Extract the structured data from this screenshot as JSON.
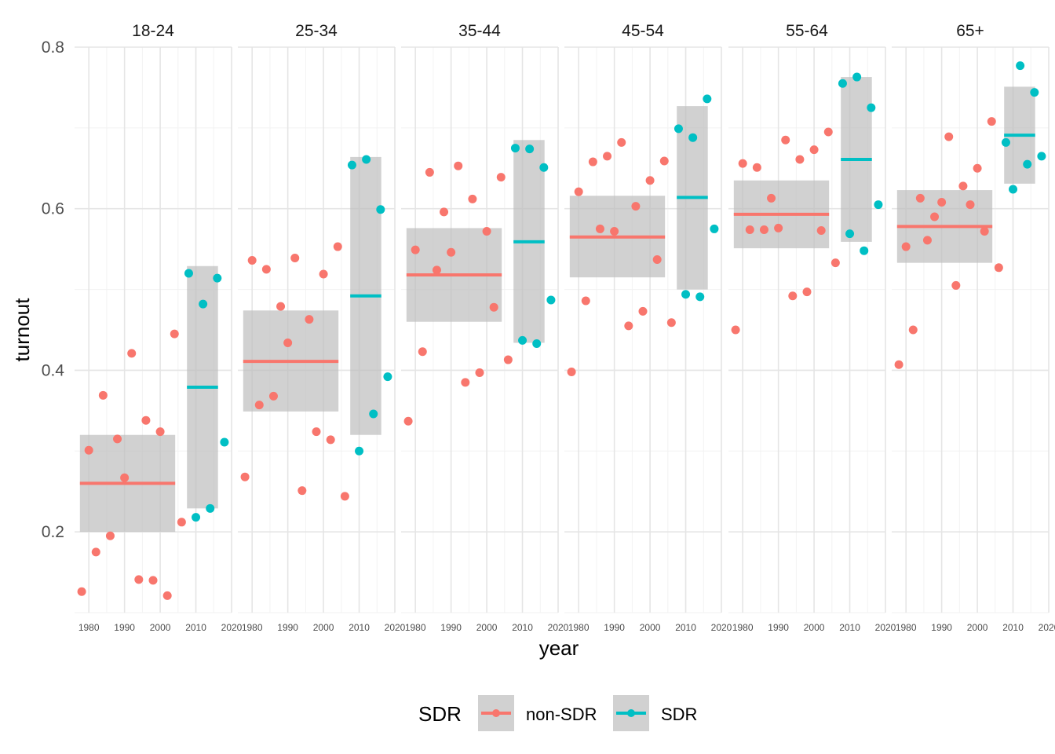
{
  "chart_data": {
    "type": "scatter",
    "xlabel": "year",
    "ylabel": "turnout",
    "xlim": [
      1976,
      2020
    ],
    "ylim": [
      0.1,
      0.8
    ],
    "x_ticks": [
      "1980",
      "1990",
      "2000",
      "2010",
      "2020"
    ],
    "y_ticks": [
      "0.2",
      "0.4",
      "0.6",
      "0.8"
    ],
    "legend": {
      "title": "SDR",
      "position": "bottom",
      "entries": [
        {
          "label": "non-SDR",
          "color": "#F8766D"
        },
        {
          "label": "SDR",
          "color": "#00BFC4"
        }
      ]
    },
    "colors": {
      "non-SDR": "#F8766D",
      "SDR": "#00BFC4",
      "band": "#BEBEBE",
      "grid": "#EBEBEB"
    },
    "panels": [
      {
        "label": "18-24",
        "nonsdr": {
          "x": [
            1978,
            1980,
            1982,
            1984,
            1986,
            1988,
            1990,
            1992,
            1994,
            1996,
            1998,
            2000,
            2002,
            2004,
            2006
          ],
          "y": [
            0.126,
            0.301,
            0.175,
            0.369,
            0.195,
            0.315,
            0.267,
            0.421,
            0.141,
            0.338,
            0.14,
            0.324,
            0.121,
            0.445,
            0.212
          ],
          "mean": 0.26,
          "band": [
            0.2,
            0.32
          ]
        },
        "sdr": {
          "x": [
            2008,
            2010,
            2012,
            2014,
            2016,
            2018
          ],
          "y": [
            0.52,
            0.218,
            0.482,
            0.229,
            0.514,
            0.311
          ],
          "mean": 0.379,
          "band": [
            0.229,
            0.529
          ]
        }
      },
      {
        "label": "25-34",
        "nonsdr": {
          "x": [
            1978,
            1980,
            1982,
            1984,
            1986,
            1988,
            1990,
            1992,
            1994,
            1996,
            1998,
            2000,
            2002,
            2004,
            2006
          ],
          "y": [
            0.268,
            0.536,
            0.357,
            0.525,
            0.368,
            0.479,
            0.434,
            0.539,
            0.251,
            0.463,
            0.324,
            0.519,
            0.314,
            0.553,
            0.244
          ],
          "mean": 0.411,
          "band": [
            0.349,
            0.474
          ]
        },
        "sdr": {
          "x": [
            2008,
            2010,
            2012,
            2014,
            2016,
            2018
          ],
          "y": [
            0.654,
            0.3,
            0.661,
            0.346,
            0.599,
            0.392
          ],
          "mean": 0.492,
          "band": [
            0.32,
            0.664
          ]
        }
      },
      {
        "label": "35-44",
        "nonsdr": {
          "x": [
            1978,
            1980,
            1982,
            1984,
            1986,
            1988,
            1990,
            1992,
            1994,
            1996,
            1998,
            2000,
            2002,
            2004,
            2006
          ],
          "y": [
            0.337,
            0.549,
            0.423,
            0.645,
            0.524,
            0.596,
            0.546,
            0.653,
            0.385,
            0.612,
            0.397,
            0.572,
            0.478,
            0.639,
            0.413
          ],
          "mean": 0.518,
          "band": [
            0.46,
            0.576
          ]
        },
        "sdr": {
          "x": [
            2008,
            2010,
            2012,
            2014,
            2016,
            2018
          ],
          "y": [
            0.675,
            0.437,
            0.674,
            0.433,
            0.651,
            0.487
          ],
          "mean": 0.559,
          "band": [
            0.434,
            0.685
          ]
        }
      },
      {
        "label": "45-54",
        "nonsdr": {
          "x": [
            1978,
            1980,
            1982,
            1984,
            1986,
            1988,
            1990,
            1992,
            1994,
            1996,
            1998,
            2000,
            2002,
            2004,
            2006
          ],
          "y": [
            0.398,
            0.621,
            0.486,
            0.658,
            0.575,
            0.665,
            0.572,
            0.682,
            0.455,
            0.603,
            0.473,
            0.635,
            0.537,
            0.659,
            0.459
          ],
          "mean": 0.565,
          "band": [
            0.515,
            0.616
          ]
        },
        "sdr": {
          "x": [
            2008,
            2010,
            2012,
            2014,
            2016,
            2018
          ],
          "y": [
            0.699,
            0.494,
            0.688,
            0.491,
            0.736,
            0.575
          ],
          "mean": 0.614,
          "band": [
            0.5,
            0.727
          ]
        }
      },
      {
        "label": "55-64",
        "nonsdr": {
          "x": [
            1978,
            1980,
            1982,
            1984,
            1986,
            1988,
            1990,
            1992,
            1994,
            1996,
            1998,
            2000,
            2002,
            2004,
            2006
          ],
          "y": [
            0.45,
            0.656,
            0.574,
            0.651,
            0.574,
            0.613,
            0.576,
            0.685,
            0.492,
            0.661,
            0.497,
            0.673,
            0.573,
            0.695,
            0.533
          ],
          "mean": 0.593,
          "band": [
            0.551,
            0.635
          ]
        },
        "sdr": {
          "x": [
            2008,
            2010,
            2012,
            2014,
            2016,
            2018
          ],
          "y": [
            0.755,
            0.569,
            0.763,
            0.548,
            0.725,
            0.605
          ],
          "mean": 0.661,
          "band": [
            0.559,
            0.763
          ]
        }
      },
      {
        "label": "65+",
        "nonsdr": {
          "x": [
            1978,
            1980,
            1982,
            1984,
            1986,
            1988,
            1990,
            1992,
            1994,
            1996,
            1998,
            2000,
            2002,
            2004,
            2006
          ],
          "y": [
            0.407,
            0.553,
            0.45,
            0.613,
            0.561,
            0.59,
            0.608,
            0.689,
            0.505,
            0.628,
            0.605,
            0.65,
            0.572,
            0.708,
            0.527
          ],
          "mean": 0.578,
          "band": [
            0.533,
            0.623
          ]
        },
        "sdr": {
          "x": [
            2008,
            2010,
            2012,
            2014,
            2016,
            2018
          ],
          "y": [
            0.682,
            0.624,
            0.777,
            0.655,
            0.744,
            0.665
          ],
          "mean": 0.691,
          "band": [
            0.631,
            0.751
          ]
        }
      }
    ]
  }
}
